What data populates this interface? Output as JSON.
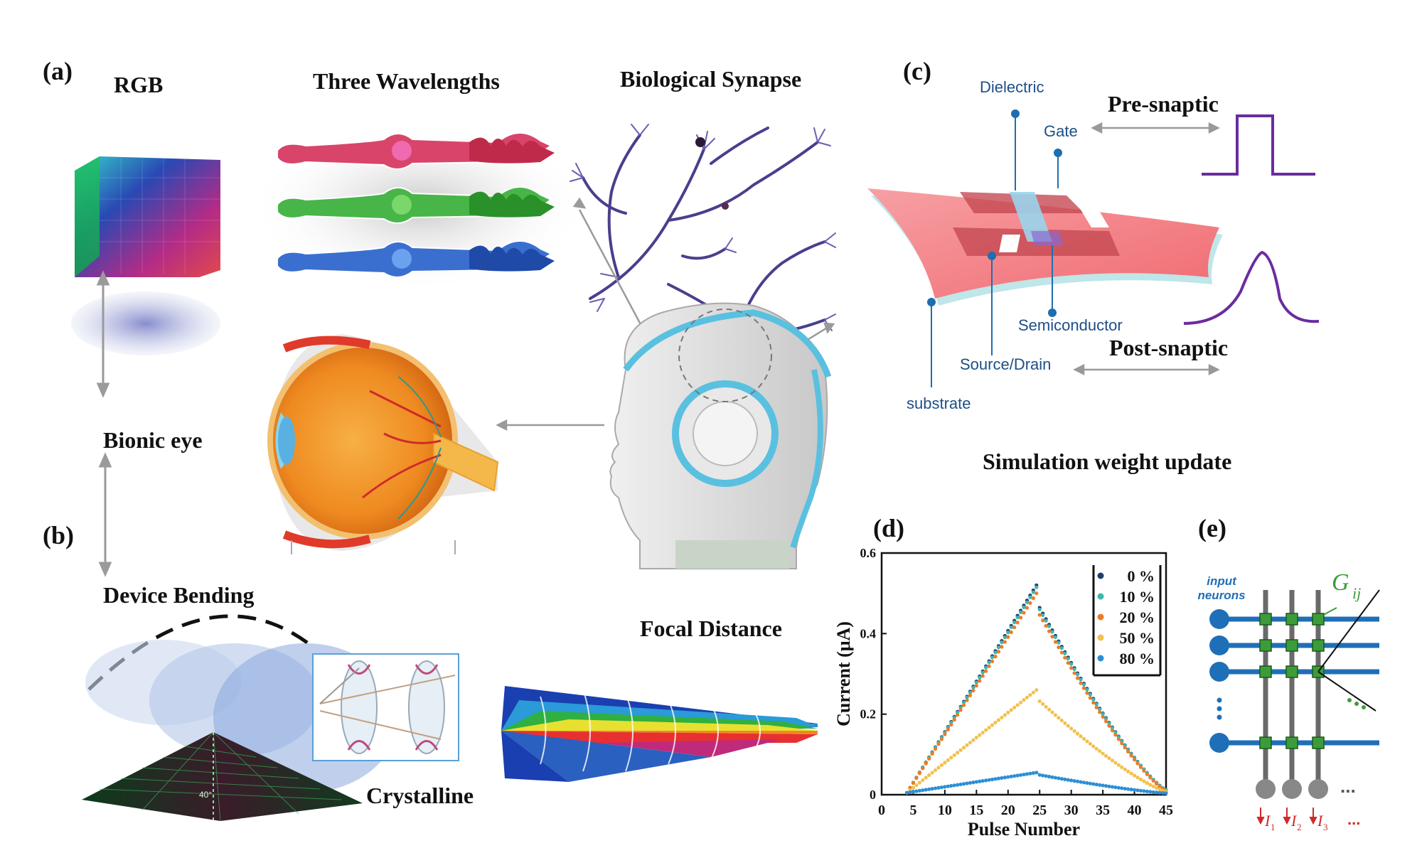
{
  "panels": {
    "a": "(a)",
    "b": "(b)",
    "c": "(c)",
    "d": "(d)",
    "e": "(e)"
  },
  "panel_a": {
    "rgb": "RGB",
    "three_wavelengths": "Three Wavelengths",
    "biological_synapse": "Biological Synapse",
    "bionic_eye": "Bionic eye"
  },
  "panel_b": {
    "device_bending": "Device Bending",
    "focal_distance": "Focal Distance",
    "crystalline": "Crystalline",
    "angle_label": "40°"
  },
  "panel_c": {
    "dielectric": "Dielectric",
    "gate": "Gate",
    "pre_snaptic": "Pre-snaptic",
    "semiconductor": "Semiconductor",
    "source_drain": "Source/Drain",
    "post_snaptic": "Post-snaptic",
    "substrate": "substrate",
    "simulation_title": "Simulation weight update"
  },
  "panel_e": {
    "input_line1": "input",
    "input_line2": "neurons",
    "gij": "G",
    "gij_sub": "ij",
    "dots": "...",
    "currents": [
      "I",
      "I",
      "I"
    ],
    "current_subs": [
      "1",
      "2",
      "3"
    ]
  },
  "colors": {
    "crossbar_blue": "#1f6fb8",
    "node_green": "#3d9c3a",
    "pulse_purple": "#6a2ca0"
  },
  "chart_data": {
    "type": "scatter",
    "xlabel": "Pulse Number",
    "ylabel": "Current (μA)",
    "xlim": [
      0,
      45
    ],
    "ylim": [
      0,
      0.6
    ],
    "xticks": [
      0,
      5,
      10,
      15,
      20,
      25,
      30,
      35,
      40,
      45
    ],
    "yticks": [
      0,
      0.2,
      0.4,
      0.6
    ],
    "ytick_labels": [
      "0",
      "0.2",
      "0.4",
      "0.6"
    ],
    "legend_position": "top-right",
    "series": [
      {
        "name": "0 %",
        "color": "#1d3f6e",
        "peak": 0.52,
        "end": 0.012
      },
      {
        "name": "10 %",
        "color": "#3fb6b0",
        "peak": 0.515,
        "end": 0.012
      },
      {
        "name": "20 %",
        "color": "#f07a22",
        "peak": 0.5,
        "end": 0.01
      },
      {
        "name": "50 %",
        "color": "#f2c14e",
        "peak": 0.26,
        "end": 0.008
      },
      {
        "name": "80 %",
        "color": "#2c8fd6",
        "peak": 0.055,
        "end": 0.004
      }
    ]
  }
}
